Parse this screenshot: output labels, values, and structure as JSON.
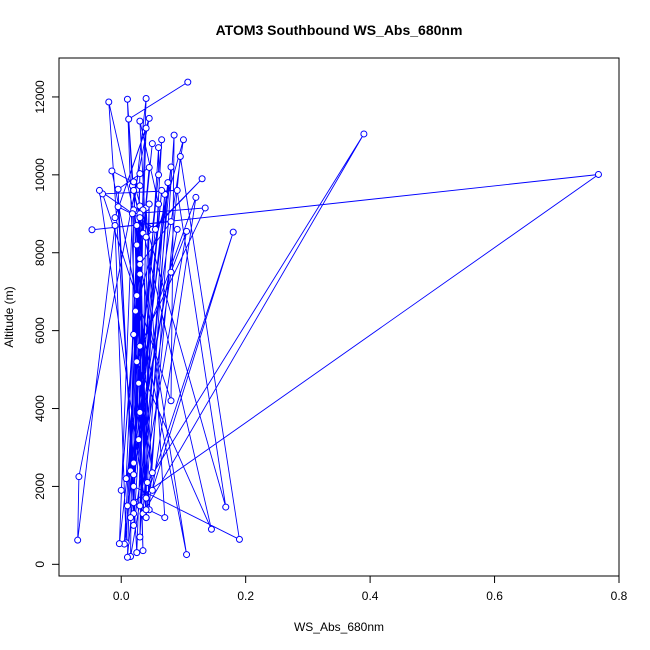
{
  "chart_data": {
    "type": "line",
    "title": "ATOM3 Southbound WS_Abs_680nm",
    "xlabel": "WS_Abs_680nm",
    "ylabel": "Altitude (m)",
    "xlim": [
      -0.1,
      0.8
    ],
    "ylim": [
      -300,
      13000
    ],
    "xticks": [
      0.0,
      0.2,
      0.4,
      0.6,
      0.8
    ],
    "xtick_labels": [
      "0.0",
      "0.2",
      "0.4",
      "0.6",
      "0.8"
    ],
    "yticks": [
      0,
      2000,
      4000,
      6000,
      8000,
      10000,
      12000
    ],
    "ytick_labels": [
      "0",
      "2000",
      "4000",
      "6000",
      "8000",
      "10000",
      "12000"
    ],
    "grid": false,
    "line_color": "#0000ff",
    "marker": "open-circle",
    "points": [
      {
        "x": 0.107,
        "y": 12380
      },
      {
        "x": 0.012,
        "y": 11430
      },
      {
        "x": 0.018,
        "y": 9720
      },
      {
        "x": 0.035,
        "y": 8500
      },
      {
        "x": 0.05,
        "y": 10800
      },
      {
        "x": 0.023,
        "y": 6500
      },
      {
        "x": 0.1,
        "y": 10900
      },
      {
        "x": 0.028,
        "y": 3200
      },
      {
        "x": 0.07,
        "y": 9500
      },
      {
        "x": 0.035,
        "y": 1300
      },
      {
        "x": 0.39,
        "y": 11050
      },
      {
        "x": 0.042,
        "y": 2100
      },
      {
        "x": 0.075,
        "y": 9800
      },
      {
        "x": 0.02,
        "y": 2600
      },
      {
        "x": 0.09,
        "y": 8600
      },
      {
        "x": 0.01,
        "y": 1500
      },
      {
        "x": 0.767,
        "y": 10010
      },
      {
        "x": -0.047,
        "y": 8590
      },
      {
        "x": 0.08,
        "y": 8800
      },
      {
        "x": 0.03,
        "y": 7700
      },
      {
        "x": 0.04,
        "y": 1200
      },
      {
        "x": 0.02,
        "y": 9600
      },
      {
        "x": 0.145,
        "y": 900
      },
      {
        "x": 0.025,
        "y": 5200
      },
      {
        "x": 0.12,
        "y": 9420
      },
      {
        "x": 0.05,
        "y": 1900
      },
      {
        "x": 0.18,
        "y": 8530
      },
      {
        "x": 0.04,
        "y": 1700
      },
      {
        "x": 0.03,
        "y": 9200
      },
      {
        "x": 0.015,
        "y": 2400
      },
      {
        "x": 0.08,
        "y": 10200
      },
      {
        "x": 0.03,
        "y": 1500
      },
      {
        "x": 0.06,
        "y": 9250
      },
      {
        "x": 0.03,
        "y": 11380
      },
      {
        "x": 0.04,
        "y": 8400
      },
      {
        "x": 0.13,
        "y": 9900
      },
      {
        "x": 0.05,
        "y": 8600
      },
      {
        "x": 0.06,
        "y": 10000
      },
      {
        "x": 0.06,
        "y": 10700
      },
      {
        "x": 0.02,
        "y": 1000
      },
      {
        "x": 0.08,
        "y": 7500
      },
      {
        "x": 0.105,
        "y": 8550
      },
      {
        "x": 0.015,
        "y": 200
      },
      {
        "x": 0.02,
        "y": 9100
      },
      {
        "x": 0.04,
        "y": 11960
      },
      {
        "x": 0.02,
        "y": 2300
      },
      {
        "x": -0.02,
        "y": 11870
      },
      {
        "x": 0.025,
        "y": 8700
      },
      {
        "x": 0.028,
        "y": 4650
      },
      {
        "x": 0.065,
        "y": 10900
      },
      {
        "x": 0.03,
        "y": 700
      },
      {
        "x": 0.04,
        "y": 9150
      },
      {
        "x": 0.07,
        "y": 1200
      },
      {
        "x": 0.02,
        "y": 1580
      },
      {
        "x": 0.03,
        "y": 7450
      },
      {
        "x": 0.045,
        "y": 1400
      },
      {
        "x": 0.085,
        "y": 11020
      },
      {
        "x": 0.08,
        "y": 4200
      },
      {
        "x": -0.03,
        "y": 9510
      },
      {
        "x": 0.09,
        "y": 9600
      },
      {
        "x": 0.168,
        "y": 1470
      },
      {
        "x": 0.02,
        "y": 9820
      },
      {
        "x": 0.035,
        "y": 350
      },
      {
        "x": 0.01,
        "y": 11940
      },
      {
        "x": 0.05,
        "y": 2350
      },
      {
        "x": 0.02,
        "y": 5900
      },
      {
        "x": 0.045,
        "y": 10190
      },
      {
        "x": -0.005,
        "y": 9630
      },
      {
        "x": 0.02,
        "y": 1300
      },
      {
        "x": 0.04,
        "y": 11200
      },
      {
        "x": -0.01,
        "y": 8900
      },
      {
        "x": 0.045,
        "y": 11450
      },
      {
        "x": -0.068,
        "y": 2250
      },
      {
        "x": -0.07,
        "y": 620
      },
      {
        "x": -0.01,
        "y": 8700
      },
      {
        "x": 0.008,
        "y": 550
      },
      {
        "x": 0.025,
        "y": 6900
      },
      {
        "x": 0.0,
        "y": 1900
      },
      {
        "x": 0.035,
        "y": 9100
      },
      {
        "x": 0.03,
        "y": 3900
      },
      {
        "x": 0.03,
        "y": 9000
      },
      {
        "x": 0.015,
        "y": 1200
      },
      {
        "x": 0.03,
        "y": 8900
      },
      {
        "x": -0.005,
        "y": 9180
      },
      {
        "x": 0.025,
        "y": 300
      },
      {
        "x": 0.045,
        "y": 9250
      },
      {
        "x": 0.04,
        "y": 1200
      },
      {
        "x": 0.095,
        "y": 10470
      },
      {
        "x": 0.19,
        "y": 640
      },
      {
        "x": 0.02,
        "y": 2000
      },
      {
        "x": 0.03,
        "y": 10030
      },
      {
        "x": 0.01,
        "y": 180
      },
      {
        "x": 0.065,
        "y": 9600
      },
      {
        "x": 0.005,
        "y": 520
      },
      {
        "x": 0.03,
        "y": 7850
      },
      {
        "x": 0.105,
        "y": 250
      },
      {
        "x": -0.015,
        "y": 10100
      },
      {
        "x": 0.03,
        "y": 9720
      },
      {
        "x": 0.008,
        "y": 2200
      },
      {
        "x": 0.025,
        "y": 8200
      },
      {
        "x": 0.04,
        "y": 1400
      },
      {
        "x": -0.035,
        "y": 9600
      },
      {
        "x": 0.055,
        "y": 8600
      },
      {
        "x": -0.003,
        "y": 530
      },
      {
        "x": 0.018,
        "y": 9000
      },
      {
        "x": 0.135,
        "y": 9150
      },
      {
        "x": 0.03,
        "y": 5600
      }
    ]
  }
}
